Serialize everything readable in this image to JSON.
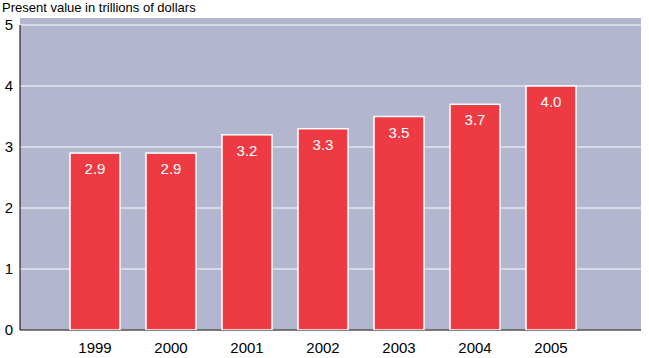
{
  "chart_data": {
    "type": "bar",
    "ylabel": "Present value in trillions of dollars",
    "categories": [
      "1999",
      "2000",
      "2001",
      "2002",
      "2003",
      "2004",
      "2005"
    ],
    "values": [
      2.9,
      2.9,
      3.2,
      3.3,
      3.5,
      3.7,
      4.0
    ],
    "value_labels": [
      "2.9",
      "2.9",
      "3.2",
      "3.3",
      "3.5",
      "3.7",
      "4.0"
    ],
    "color": "#ee3a43",
    "ylim": [
      0,
      5
    ],
    "yticks": [
      0,
      1,
      2,
      3,
      4,
      5
    ],
    "grid": true,
    "data_labels": true
  }
}
